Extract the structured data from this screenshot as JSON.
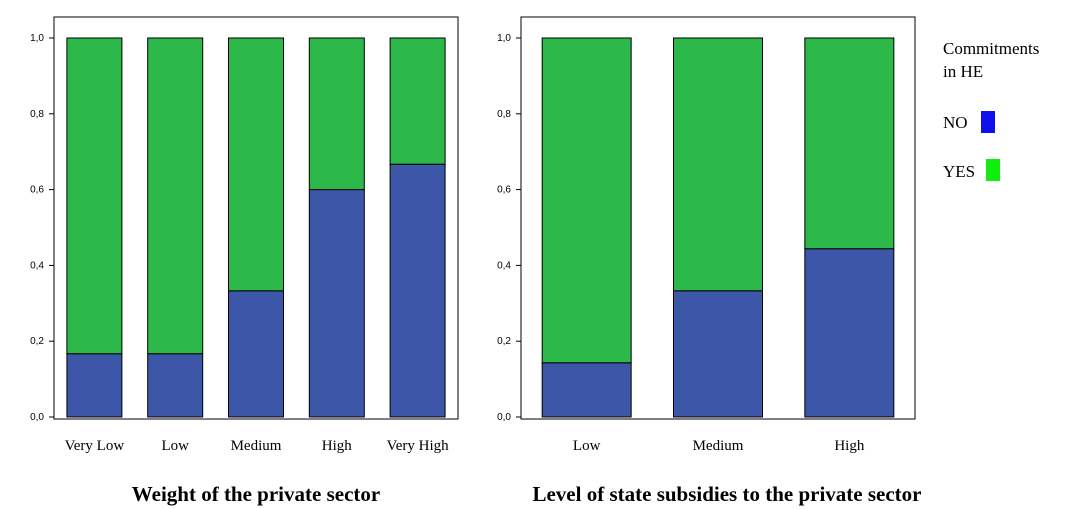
{
  "chart_data": [
    {
      "type": "bar",
      "stacked": true,
      "xlabel": "Weight of the private sector",
      "ylabel": "",
      "ylim": [
        0,
        1
      ],
      "yticks": [
        "0,0",
        "0,2",
        "0,4",
        "0,6",
        "0,8",
        "1,0"
      ],
      "categories": [
        "Very Low",
        "Low",
        "Medium",
        "High",
        "Very High"
      ],
      "series": [
        {
          "name": "NO",
          "color": "#3d57a8",
          "values": [
            0.167,
            0.167,
            0.333,
            0.6,
            0.667
          ]
        },
        {
          "name": "YES",
          "color": "#2db84a",
          "values": [
            0.833,
            0.833,
            0.667,
            0.4,
            0.333
          ]
        }
      ]
    },
    {
      "type": "bar",
      "stacked": true,
      "xlabel": "Level of state subsidies to the private sector",
      "ylabel": "",
      "ylim": [
        0,
        1
      ],
      "yticks": [
        "0,0",
        "0,2",
        "0,4",
        "0,6",
        "0,8",
        "1,0"
      ],
      "categories": [
        "Low",
        "Medium",
        "High"
      ],
      "series": [
        {
          "name": "NO",
          "color": "#3d57a8",
          "values": [
            0.143,
            0.333,
            0.444
          ]
        },
        {
          "name": "YES",
          "color": "#2db84a",
          "values": [
            0.857,
            0.667,
            0.556
          ]
        }
      ]
    }
  ],
  "legend": {
    "title_line1": "Commitments",
    "title_line2": "in HE",
    "items": [
      {
        "label": "NO",
        "color": "#1010ee"
      },
      {
        "label": "YES",
        "color": "#10ee10"
      }
    ]
  }
}
